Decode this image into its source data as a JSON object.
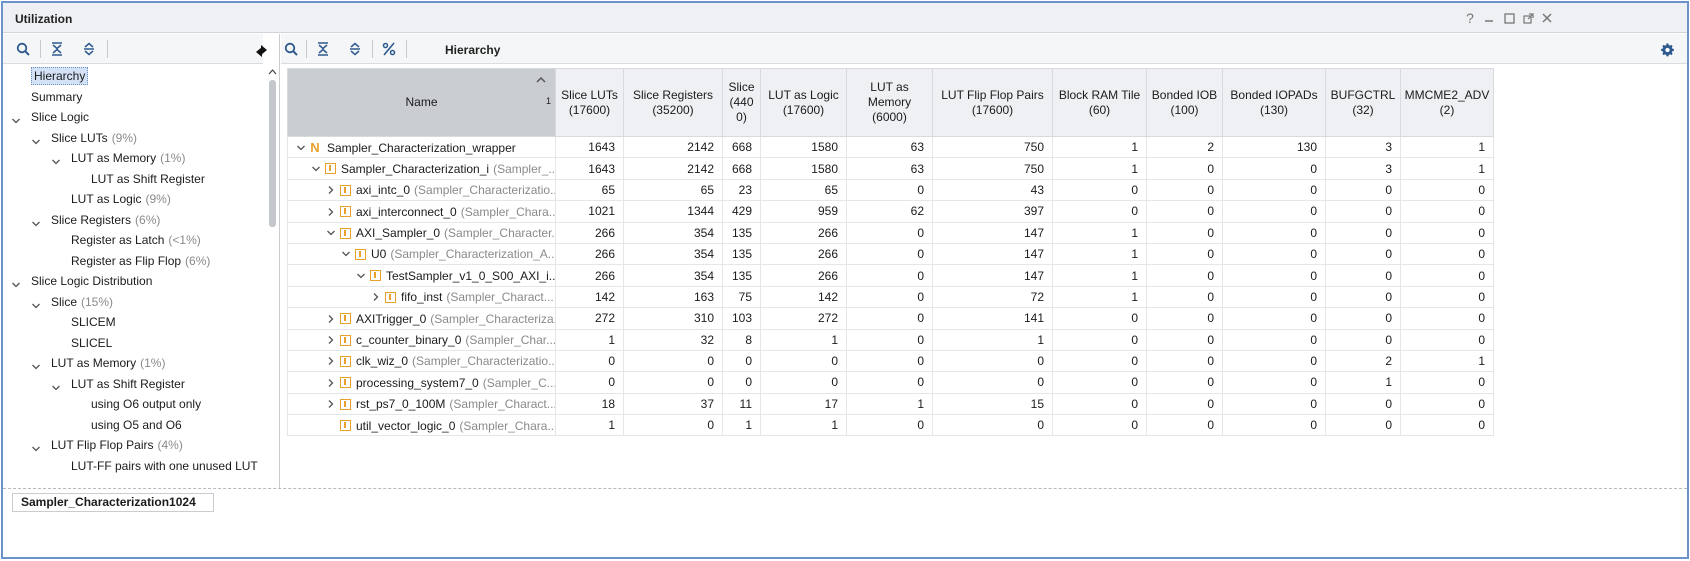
{
  "window": {
    "title": "Utilization"
  },
  "left": {
    "tree": [
      {
        "label": "Hierarchy",
        "pct": "",
        "level": 0,
        "toggle": "none",
        "selected": true
      },
      {
        "label": "Summary",
        "pct": "",
        "level": 0,
        "toggle": "none"
      },
      {
        "label": "Slice Logic",
        "pct": "",
        "level": 0,
        "toggle": "expanded"
      },
      {
        "label": "Slice LUTs",
        "pct": "(9%)",
        "level": 1,
        "toggle": "expanded"
      },
      {
        "label": "LUT as Memory",
        "pct": "(1%)",
        "level": 2,
        "toggle": "expanded"
      },
      {
        "label": "LUT as Shift Register",
        "pct": "",
        "level": 3,
        "toggle": "none"
      },
      {
        "label": "LUT as Logic",
        "pct": "(9%)",
        "level": 2,
        "toggle": "none"
      },
      {
        "label": "Slice Registers",
        "pct": "(6%)",
        "level": 1,
        "toggle": "expanded"
      },
      {
        "label": "Register as Latch",
        "pct": "(<1%)",
        "level": 2,
        "toggle": "none"
      },
      {
        "label": "Register as Flip Flop",
        "pct": "(6%)",
        "level": 2,
        "toggle": "none"
      },
      {
        "label": "Slice Logic Distribution",
        "pct": "",
        "level": 0,
        "toggle": "expanded"
      },
      {
        "label": "Slice",
        "pct": "(15%)",
        "level": 1,
        "toggle": "expanded"
      },
      {
        "label": "SLICEM",
        "pct": "",
        "level": 2,
        "toggle": "none"
      },
      {
        "label": "SLICEL",
        "pct": "",
        "level": 2,
        "toggle": "none"
      },
      {
        "label": "LUT as Memory",
        "pct": "(1%)",
        "level": 1,
        "toggle": "expanded"
      },
      {
        "label": "LUT as Shift Register",
        "pct": "",
        "level": 2,
        "toggle": "expanded"
      },
      {
        "label": "using O6 output only",
        "pct": "",
        "level": 3,
        "toggle": "none"
      },
      {
        "label": "using O5 and O6",
        "pct": "",
        "level": 3,
        "toggle": "none"
      },
      {
        "label": "LUT Flip Flop Pairs",
        "pct": "(4%)",
        "level": 1,
        "toggle": "expanded"
      },
      {
        "label": "LUT-FF pairs with one unused LUT",
        "pct": "",
        "level": 2,
        "toggle": "none"
      }
    ]
  },
  "right": {
    "toolbar_label": "Hierarchy",
    "name_header": "Name",
    "sort_index": "1",
    "columns": [
      "Slice LUTs (17600)",
      "Slice Registers (35200)",
      "Slice (4400)",
      "LUT as Logic (17600)",
      "LUT as Memory (6000)",
      "LUT Flip Flop Pairs (17600)",
      "Block RAM Tile (60)",
      "Bonded IOB (100)",
      "Bonded IOPADs (130)",
      "BUFGCTRL (32)",
      "MMCME2_ADV (2)"
    ],
    "column_lines": [
      [
        "Slice LUTs",
        "(17600)"
      ],
      [
        "Slice Registers",
        "(35200)"
      ],
      [
        "Slice",
        "(440",
        "0)"
      ],
      [
        "LUT as Logic",
        "(17600)"
      ],
      [
        "LUT as Memory",
        "(6000)"
      ],
      [
        "LUT Flip Flop Pairs",
        "(17600)"
      ],
      [
        "Block RAM Tile",
        "(60)"
      ],
      [
        "Bonded IOB",
        "(100)"
      ],
      [
        "Bonded IOPADs",
        "(130)"
      ],
      [
        "BUFGCTRL",
        "(32)"
      ],
      [
        "MMCME2_ADV",
        "(2)"
      ]
    ],
    "rows": [
      {
        "name": "Sampler_Characterization_wrapper",
        "module": "",
        "level": 0,
        "toggle": "expanded",
        "icon": "N",
        "values": [
          "1643",
          "2142",
          "668",
          "1580",
          "63",
          "750",
          "1",
          "2",
          "130",
          "3",
          "1"
        ]
      },
      {
        "name": "Sampler_Characterization_i",
        "module": "(Sampler_...",
        "level": 1,
        "toggle": "expanded",
        "icon": "block",
        "values": [
          "1643",
          "2142",
          "668",
          "1580",
          "63",
          "750",
          "1",
          "0",
          "0",
          "3",
          "1"
        ]
      },
      {
        "name": "axi_intc_0",
        "module": "(Sampler_Characterizatio...",
        "level": 2,
        "toggle": "collapsed",
        "icon": "block",
        "values": [
          "65",
          "65",
          "23",
          "65",
          "0",
          "43",
          "0",
          "0",
          "0",
          "0",
          "0"
        ]
      },
      {
        "name": "axi_interconnect_0",
        "module": "(Sampler_Chara...",
        "level": 2,
        "toggle": "collapsed",
        "icon": "block",
        "values": [
          "1021",
          "1344",
          "429",
          "959",
          "62",
          "397",
          "0",
          "0",
          "0",
          "0",
          "0"
        ]
      },
      {
        "name": "AXI_Sampler_0",
        "module": "(Sampler_Character...",
        "level": 2,
        "toggle": "expanded",
        "icon": "block",
        "values": [
          "266",
          "354",
          "135",
          "266",
          "0",
          "147",
          "1",
          "0",
          "0",
          "0",
          "0"
        ]
      },
      {
        "name": "U0",
        "module": "(Sampler_Characterization_A...",
        "level": 3,
        "toggle": "expanded",
        "icon": "block",
        "values": [
          "266",
          "354",
          "135",
          "266",
          "0",
          "147",
          "1",
          "0",
          "0",
          "0",
          "0"
        ]
      },
      {
        "name": "TestSampler_v1_0_S00_AXI_i...",
        "module": "",
        "level": 4,
        "toggle": "expanded",
        "icon": "block",
        "values": [
          "266",
          "354",
          "135",
          "266",
          "0",
          "147",
          "1",
          "0",
          "0",
          "0",
          "0"
        ]
      },
      {
        "name": "fifo_inst",
        "module": "(Sampler_Charact...",
        "level": 5,
        "toggle": "collapsed",
        "icon": "block",
        "values": [
          "142",
          "163",
          "75",
          "142",
          "0",
          "72",
          "1",
          "0",
          "0",
          "0",
          "0"
        ]
      },
      {
        "name": "AXITrigger_0",
        "module": "(Sampler_Characteriza...",
        "level": 2,
        "toggle": "collapsed",
        "icon": "block",
        "values": [
          "272",
          "310",
          "103",
          "272",
          "0",
          "141",
          "0",
          "0",
          "0",
          "0",
          "0"
        ]
      },
      {
        "name": "c_counter_binary_0",
        "module": "(Sampler_Char...",
        "level": 2,
        "toggle": "collapsed",
        "icon": "block",
        "values": [
          "1",
          "32",
          "8",
          "1",
          "0",
          "1",
          "0",
          "0",
          "0",
          "0",
          "0"
        ]
      },
      {
        "name": "clk_wiz_0",
        "module": "(Sampler_Characterizatio...",
        "level": 2,
        "toggle": "collapsed",
        "icon": "block",
        "values": [
          "0",
          "0",
          "0",
          "0",
          "0",
          "0",
          "0",
          "0",
          "0",
          "2",
          "1"
        ]
      },
      {
        "name": "processing_system7_0",
        "module": "(Sampler_C...",
        "level": 2,
        "toggle": "collapsed",
        "icon": "block",
        "values": [
          "0",
          "0",
          "0",
          "0",
          "0",
          "0",
          "0",
          "0",
          "0",
          "1",
          "0"
        ]
      },
      {
        "name": "rst_ps7_0_100M",
        "module": "(Sampler_Charact...",
        "level": 2,
        "toggle": "collapsed",
        "icon": "block",
        "values": [
          "18",
          "37",
          "11",
          "17",
          "1",
          "15",
          "0",
          "0",
          "0",
          "0",
          "0"
        ]
      },
      {
        "name": "util_vector_logic_0",
        "module": "(Sampler_Chara...",
        "level": 2,
        "toggle": "none",
        "icon": "block",
        "values": [
          "1",
          "0",
          "1",
          "1",
          "0",
          "0",
          "0",
          "0",
          "0",
          "0",
          "0"
        ]
      }
    ]
  },
  "bottom_tab": "Sampler_Characterization1024",
  "colors": {
    "accent": "#6b93c7",
    "selection": "#d3e2f6",
    "icon_orange": "#e8a12a",
    "muted_text": "#8a8a8a"
  }
}
